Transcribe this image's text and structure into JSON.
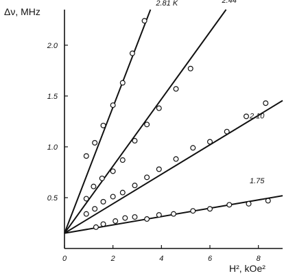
{
  "chart_data": {
    "type": "scatter",
    "title": "",
    "ylabel": "Δν, MHz",
    "xlabel": "H², kOe²",
    "xlim": [
      0,
      9
    ],
    "ylim": [
      0,
      2.35
    ],
    "x_ticks": [
      0,
      2,
      4,
      6,
      8
    ],
    "x_tick_labels": [
      "0",
      "2",
      "4",
      "6",
      "8"
    ],
    "y_ticks": [
      0.5,
      1.0,
      1.5,
      2.0
    ],
    "y_tick_labels": [
      "0.5",
      "1.0",
      "1.5",
      "2.0"
    ],
    "grid": false,
    "legend": "none",
    "series": [
      {
        "name": "2.81 K",
        "fit": {
          "intercept": 0.15,
          "slope": 0.62
        },
        "points": [
          [
            0.9,
            0.91
          ],
          [
            1.25,
            1.04
          ],
          [
            1.6,
            1.21
          ],
          [
            2.0,
            1.41
          ],
          [
            2.4,
            1.63
          ],
          [
            2.8,
            1.92
          ],
          [
            3.3,
            2.24
          ]
        ]
      },
      {
        "name": "2.44",
        "fit": {
          "intercept": 0.15,
          "slope": 0.33
        },
        "points": [
          [
            0.9,
            0.49
          ],
          [
            1.2,
            0.61
          ],
          [
            1.55,
            0.69
          ],
          [
            2.0,
            0.76
          ],
          [
            2.4,
            0.87
          ],
          [
            2.9,
            1.06
          ],
          [
            3.4,
            1.22
          ],
          [
            3.9,
            1.38
          ],
          [
            4.6,
            1.57
          ],
          [
            5.2,
            1.77
          ]
        ]
      },
      {
        "name": "2.10",
        "fit": {
          "intercept": 0.15,
          "slope": 0.145
        },
        "points": [
          [
            0.9,
            0.34
          ],
          [
            1.25,
            0.39
          ],
          [
            1.6,
            0.46
          ],
          [
            2.0,
            0.51
          ],
          [
            2.4,
            0.55
          ],
          [
            2.9,
            0.62
          ],
          [
            3.4,
            0.7
          ],
          [
            3.9,
            0.78
          ],
          [
            4.6,
            0.88
          ],
          [
            5.3,
            0.99
          ],
          [
            6.0,
            1.05
          ],
          [
            6.7,
            1.15
          ],
          [
            7.5,
            1.3
          ],
          [
            8.3,
            1.43
          ]
        ]
      },
      {
        "name": "1.75",
        "fit": {
          "intercept": 0.15,
          "slope": 0.041
        },
        "points": [
          [
            1.3,
            0.21
          ],
          [
            1.6,
            0.24
          ],
          [
            2.1,
            0.27
          ],
          [
            2.5,
            0.3
          ],
          [
            2.9,
            0.31
          ],
          [
            3.4,
            0.29
          ],
          [
            3.9,
            0.33
          ],
          [
            4.5,
            0.34
          ],
          [
            5.3,
            0.37
          ],
          [
            6.0,
            0.39
          ],
          [
            6.8,
            0.43
          ],
          [
            7.6,
            0.44
          ],
          [
            8.4,
            0.47
          ]
        ]
      }
    ]
  }
}
